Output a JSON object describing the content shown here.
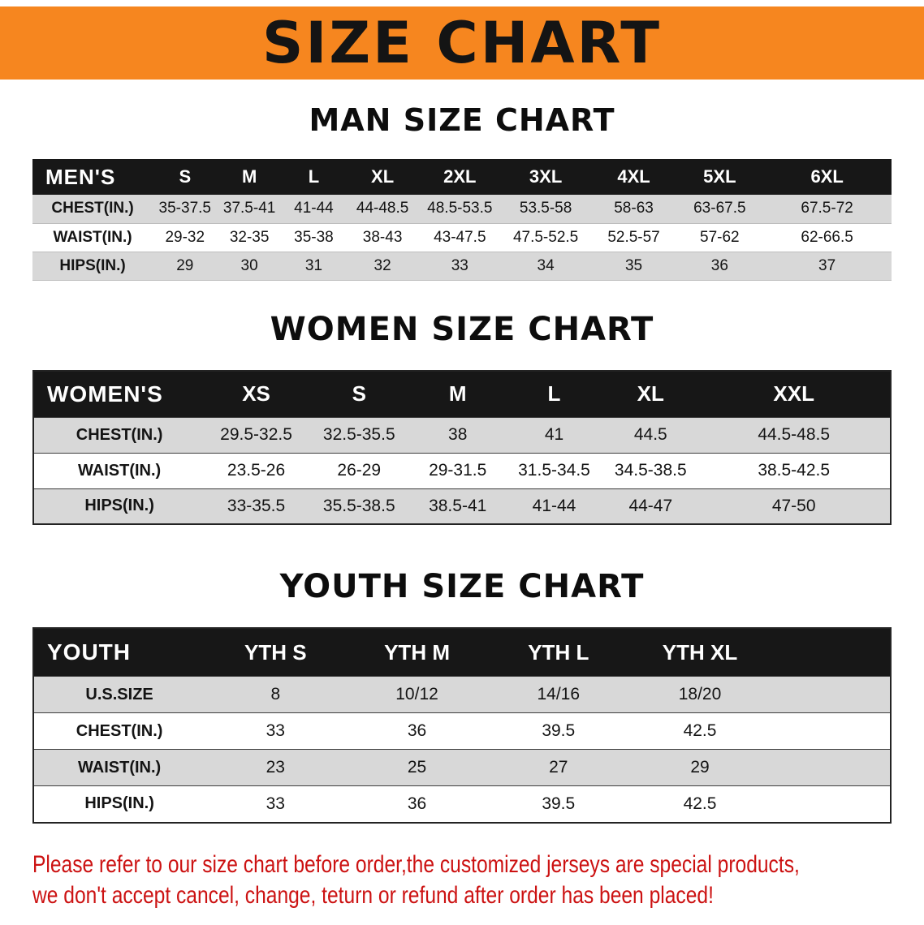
{
  "colors": {
    "banner_background": "#f6861f",
    "header_bar": "#171717",
    "row_stripe": "#d8d8d8",
    "disclaimer_red": "#cc1212"
  },
  "banner": {
    "title": "SIZE CHART"
  },
  "sections": {
    "men": {
      "title": "MAN SIZE CHART",
      "table": {
        "header": [
          "MEN'S",
          "S",
          "M",
          "L",
          "XL",
          "2XL",
          "3XL",
          "4XL",
          "5XL",
          "6XL"
        ],
        "rows": [
          [
            "CHEST(IN.)",
            "35-37.5",
            "37.5-41",
            "41-44",
            "44-48.5",
            "48.5-53.5",
            "53.5-58",
            "58-63",
            "63-67.5",
            "67.5-72"
          ],
          [
            "WAIST(IN.)",
            "29-32",
            "32-35",
            "35-38",
            "38-43",
            "43-47.5",
            "47.5-52.5",
            "52.5-57",
            "57-62",
            "62-66.5"
          ],
          [
            "HIPS(IN.)",
            "29",
            "30",
            "31",
            "32",
            "33",
            "34",
            "35",
            "36",
            "37"
          ]
        ]
      }
    },
    "women": {
      "title": "WOMEN SIZE CHART",
      "table": {
        "header": [
          "WOMEN'S",
          "XS",
          "S",
          "M",
          "L",
          "XL",
          "XXL"
        ],
        "rows": [
          [
            "CHEST(IN.)",
            "29.5-32.5",
            "32.5-35.5",
            "38",
            "41",
            "44.5",
            "44.5-48.5"
          ],
          [
            "WAIST(IN.)",
            "23.5-26",
            "26-29",
            "29-31.5",
            "31.5-34.5",
            "34.5-38.5",
            "38.5-42.5"
          ],
          [
            "HIPS(IN.)",
            "33-35.5",
            "35.5-38.5",
            "38.5-41",
            "41-44",
            "44-47",
            "47-50"
          ]
        ]
      }
    },
    "youth": {
      "title": "YOUTH SIZE CHART",
      "table": {
        "header": [
          "YOUTH",
          "YTH S",
          "YTH M",
          "YTH L",
          "YTH XL"
        ],
        "rows": [
          [
            "U.S.SIZE",
            "8",
            "10/12",
            "14/16",
            "18/20"
          ],
          [
            "CHEST(IN.)",
            "33",
            "36",
            "39.5",
            "42.5"
          ],
          [
            "WAIST(IN.)",
            "23",
            "25",
            "27",
            "29"
          ],
          [
            "HIPS(IN.)",
            "33",
            "36",
            "39.5",
            "42.5"
          ]
        ]
      }
    }
  },
  "disclaimer": {
    "line1": "Please refer to our size chart before order,the customized jerseys are special products,",
    "line2": "we don't accept cancel, change, teturn or refund after order has been placed!"
  }
}
